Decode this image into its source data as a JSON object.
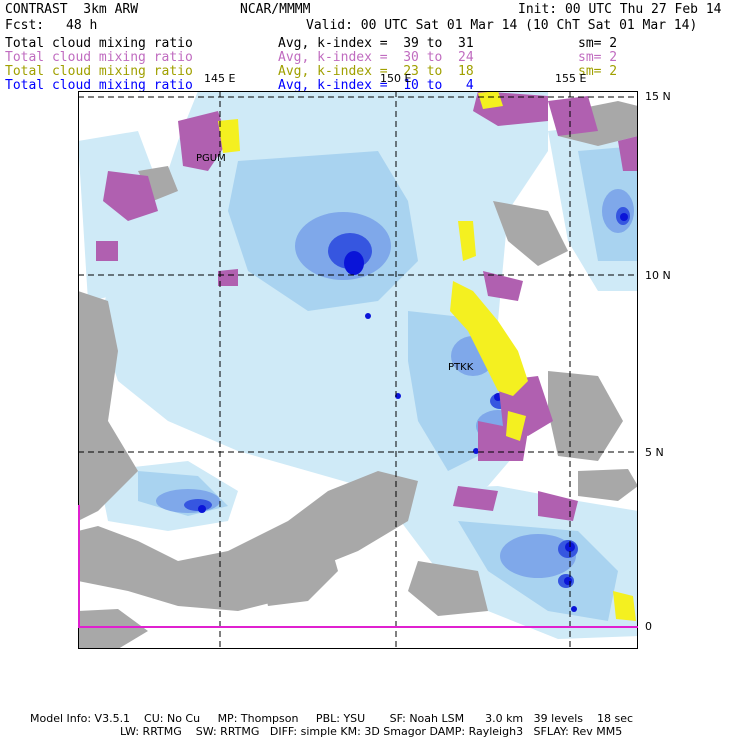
{
  "header": {
    "product": "CONTRAST  3km ARW",
    "center": "NCAR/MMMM",
    "init": "Init: 00 UTC Thu 27 Feb 14",
    "fcst_label": "Fcst:",
    "fcst_value": "48 h",
    "valid": "Valid: 00 UTC Sat 01 Mar 14 (10 ChT Sat 01 Mar 14)"
  },
  "legend": [
    {
      "field": "Total cloud mixing ratio",
      "range": "Avg, k-index =  39 to  31",
      "sm": "sm= 2",
      "color": "#000000"
    },
    {
      "field": "Total cloud mixing ratio",
      "range": "Avg, k-index =  30 to  24",
      "sm": "sm= 2",
      "color": "#c06cc0"
    },
    {
      "field": "Total cloud mixing ratio",
      "range": "Avg, k-index =  23 to  18",
      "sm": "sm= 2",
      "color": "#a0a000"
    },
    {
      "field": "Total cloud mixing ratio",
      "range": "Avg, k-index =  10 to   4",
      "sm": "",
      "color": "#0000ff"
    }
  ],
  "axes": {
    "lon_labels": [
      "145 E",
      "150 E",
      "155 E"
    ],
    "lat_labels": [
      "15 N",
      "10 N",
      "5 N",
      "0"
    ]
  },
  "stations": [
    {
      "id": "PGUM"
    },
    {
      "id": "PTKK"
    }
  ],
  "footer": {
    "line1": "Model Info: V3.5.1    CU: No Cu     MP: Thompson     PBL: YSU       SF: Noah LSM      3.0 km   39 levels    18 sec",
    "line2": "LW: RRTMG    SW: RRTMG   DIFF: simple KM: 3D Smagor DAMP: Rayleigh3   SFLAY: Rev MM5"
  },
  "colors": {
    "light_cloud": "#cfeaf7",
    "mid_cloud": "#a9d3f0",
    "blue_cloud": "#7fa8ea",
    "deep_cloud": "#3656e0",
    "core_cloud": "#0a14d8",
    "gray_layer": "#a8a8a8",
    "purple_layer": "#b060b0",
    "yellow_layer": "#f4f020",
    "boundary": "#e020d0"
  }
}
